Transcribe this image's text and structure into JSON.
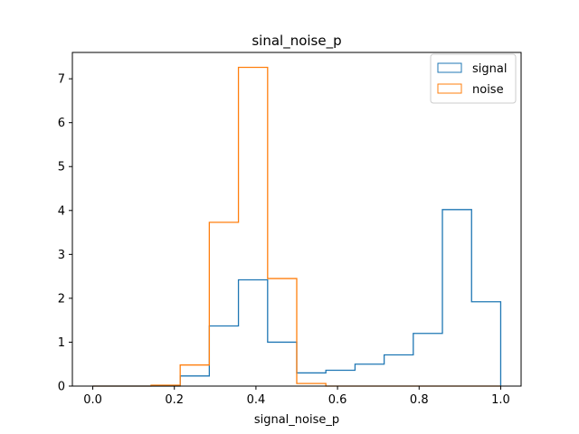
{
  "chart_data": {
    "type": "histogram-step",
    "title": "sinal_noise_p",
    "xlabel": "signal_noise_p",
    "ylabel": "",
    "xlim": [
      -0.05,
      1.05
    ],
    "ylim": [
      0,
      7.6
    ],
    "xticks": [
      0.0,
      0.2,
      0.4,
      0.6,
      0.8,
      1.0
    ],
    "xtick_labels": [
      "0.0",
      "0.2",
      "0.4",
      "0.6",
      "0.8",
      "1.0"
    ],
    "yticks": [
      0,
      1,
      2,
      3,
      4,
      5,
      6,
      7
    ],
    "ytick_labels": [
      "0",
      "1",
      "2",
      "3",
      "4",
      "5",
      "6",
      "7"
    ],
    "legend_position": "top-right",
    "series": [
      {
        "name": "signal",
        "color": "#1f77b4",
        "edges": [
          0.0,
          0.0714,
          0.1429,
          0.2143,
          0.2857,
          0.3571,
          0.4286,
          0.5,
          0.5714,
          0.6429,
          0.7143,
          0.7857,
          0.8571,
          0.9286,
          1.0
        ],
        "values": [
          0.0,
          0.0,
          0.0,
          0.23,
          1.37,
          2.42,
          1.0,
          0.3,
          0.36,
          0.5,
          0.71,
          1.2,
          4.02,
          1.92
        ]
      },
      {
        "name": "noise",
        "color": "#ff7f0e",
        "edges": [
          0.0,
          0.0714,
          0.1429,
          0.2143,
          0.2857,
          0.3571,
          0.4286,
          0.5,
          0.5714,
          0.6429,
          0.7143,
          0.7857,
          0.8571,
          0.9286,
          1.0
        ],
        "values": [
          0.0,
          0.0,
          0.02,
          0.48,
          3.73,
          7.26,
          2.45,
          0.06,
          0.0,
          0.0,
          0.0,
          0.0,
          0.0,
          0.0
        ]
      }
    ]
  }
}
